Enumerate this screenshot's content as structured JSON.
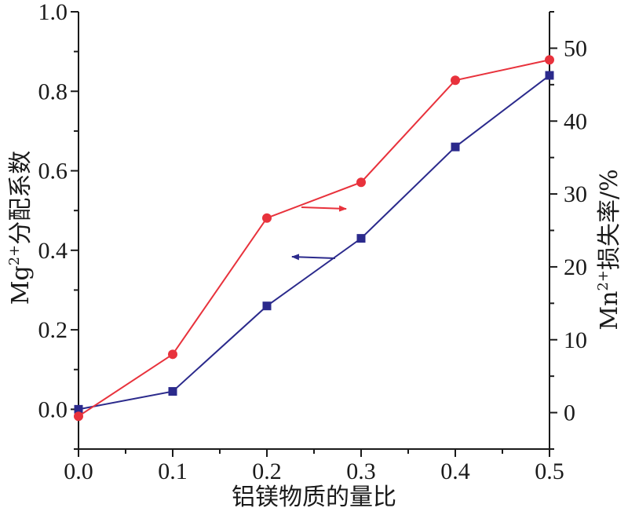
{
  "chart_data": {
    "type": "line",
    "xlabel": "铝镁物质的量比",
    "x": [
      0.0,
      0.1,
      0.2,
      0.3,
      0.4,
      0.5
    ],
    "x_ticks": [
      "0.0",
      "0.1",
      "0.2",
      "0.3",
      "0.4",
      "0.5"
    ],
    "xlim": [
      0.0,
      0.5
    ],
    "ylabel_left": {
      "base": "Mg",
      "sup": "2+",
      "rest": "分配系数"
    },
    "ylim_left": [
      -0.1,
      1.0
    ],
    "yticks_left": [
      "0.0",
      "0.2",
      "0.4",
      "0.6",
      "0.8",
      "1.0"
    ],
    "ylabel_right": {
      "base": "Mn",
      "sup": "2+",
      "rest": "损失率/%"
    },
    "ylim_right": [
      -5,
      55
    ],
    "yticks_right": [
      "0",
      "10",
      "20",
      "30",
      "40",
      "50"
    ],
    "series": [
      {
        "axis": "left",
        "marker": "square",
        "color": "#2b2a8c",
        "values": [
          0.0,
          0.045,
          0.26,
          0.43,
          0.66,
          0.84
        ]
      },
      {
        "axis": "right",
        "marker": "circle",
        "color": "#e8323c",
        "values": [
          -0.5,
          8.0,
          26.7,
          31.6,
          45.6,
          48.4
        ]
      }
    ],
    "annotations": [
      {
        "type": "arrow",
        "direction": "right",
        "color": "#e8323c"
      },
      {
        "type": "arrow",
        "direction": "left",
        "color": "#2b2a8c"
      }
    ],
    "grid": false
  }
}
